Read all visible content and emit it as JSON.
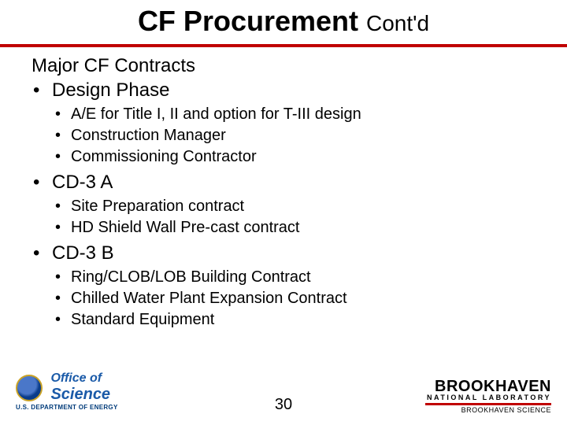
{
  "title": {
    "main": "CF Procurement ",
    "sub": "Cont'd"
  },
  "rule_color": "#c00000",
  "section_header": "Major CF Contracts",
  "bullets": [
    {
      "label": "Design Phase",
      "items": [
        "A/E for Title I, II and option for T-III design",
        "Construction Manager",
        "Commissioning Contractor"
      ]
    },
    {
      "label": "CD-3 A",
      "items": [
        "Site Preparation contract",
        "HD Shield Wall Pre-cast contract"
      ]
    },
    {
      "label": "CD-3 B",
      "items": [
        "Ring/CLOB/LOB Building Contract",
        "Chilled Water Plant Expansion Contract",
        "Standard Equipment"
      ]
    }
  ],
  "page_number": "30",
  "logo_left": {
    "line1": "Office of",
    "line2": "Science",
    "sub": "U.S. DEPARTMENT OF ENERGY",
    "text_color": "#1a5aa8"
  },
  "logo_right": {
    "line1": "BROOKHAVEN",
    "line2": "NATIONAL LABORATORY",
    "line3": "BROOKHAVEN SCIENCE",
    "rule_color": "#c00000"
  },
  "fonts": {
    "title_main_size": 36,
    "title_sub_size": 28,
    "section_header_size": 24,
    "lvl1_size": 24,
    "lvl2_size": 20,
    "pagenum_size": 20
  },
  "colors": {
    "background": "#ffffff",
    "text": "#000000",
    "accent_red": "#c00000",
    "doe_blue": "#1a5aa8"
  }
}
